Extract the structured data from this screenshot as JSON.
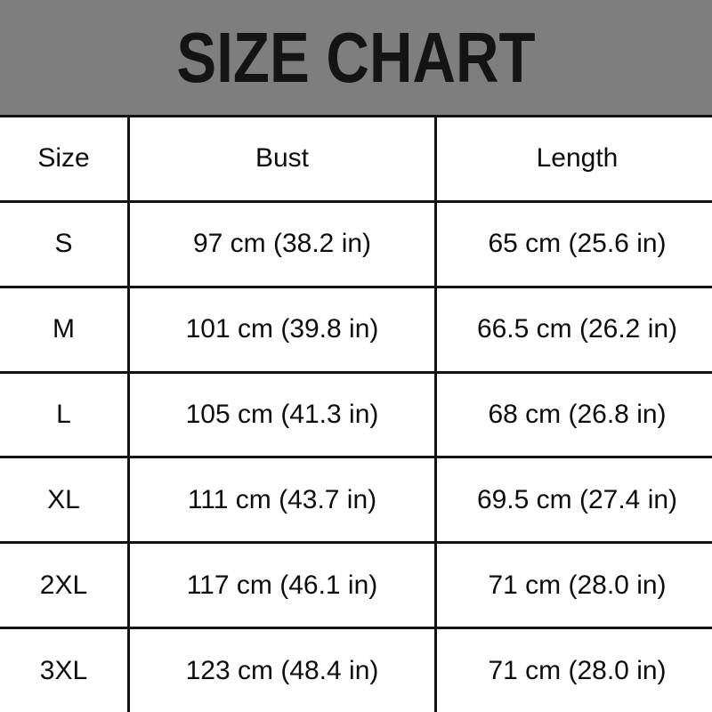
{
  "banner": {
    "title": "SIZE CHART"
  },
  "chart_data": {
    "type": "table",
    "title": "SIZE CHART",
    "columns": [
      "Size",
      "Bust",
      "Length"
    ],
    "rows": [
      [
        "S",
        "97 cm (38.2 in)",
        "65 cm (25.6 in)"
      ],
      [
        "M",
        "101 cm (39.8 in)",
        "66.5 cm (26.2 in)"
      ],
      [
        "L",
        "105 cm (41.3 in)",
        "68 cm (26.8 in)"
      ],
      [
        "XL",
        "111 cm (43.7 in)",
        "69.5 cm (27.4 in)"
      ],
      [
        "2XL",
        "117 cm (46.1 in)",
        "71 cm (28.0 in)"
      ],
      [
        "3XL",
        "123 cm (48.4 in)",
        "71 cm (28.0 in)"
      ]
    ],
    "units": {
      "bust": "cm (in)",
      "length": "cm (in)"
    }
  },
  "colors": {
    "banner_background": "#7e7e7e",
    "title_text": "#141414",
    "table_border": "#121212",
    "cell_text": "#0d0d0d",
    "page_background": "#ffffff"
  }
}
